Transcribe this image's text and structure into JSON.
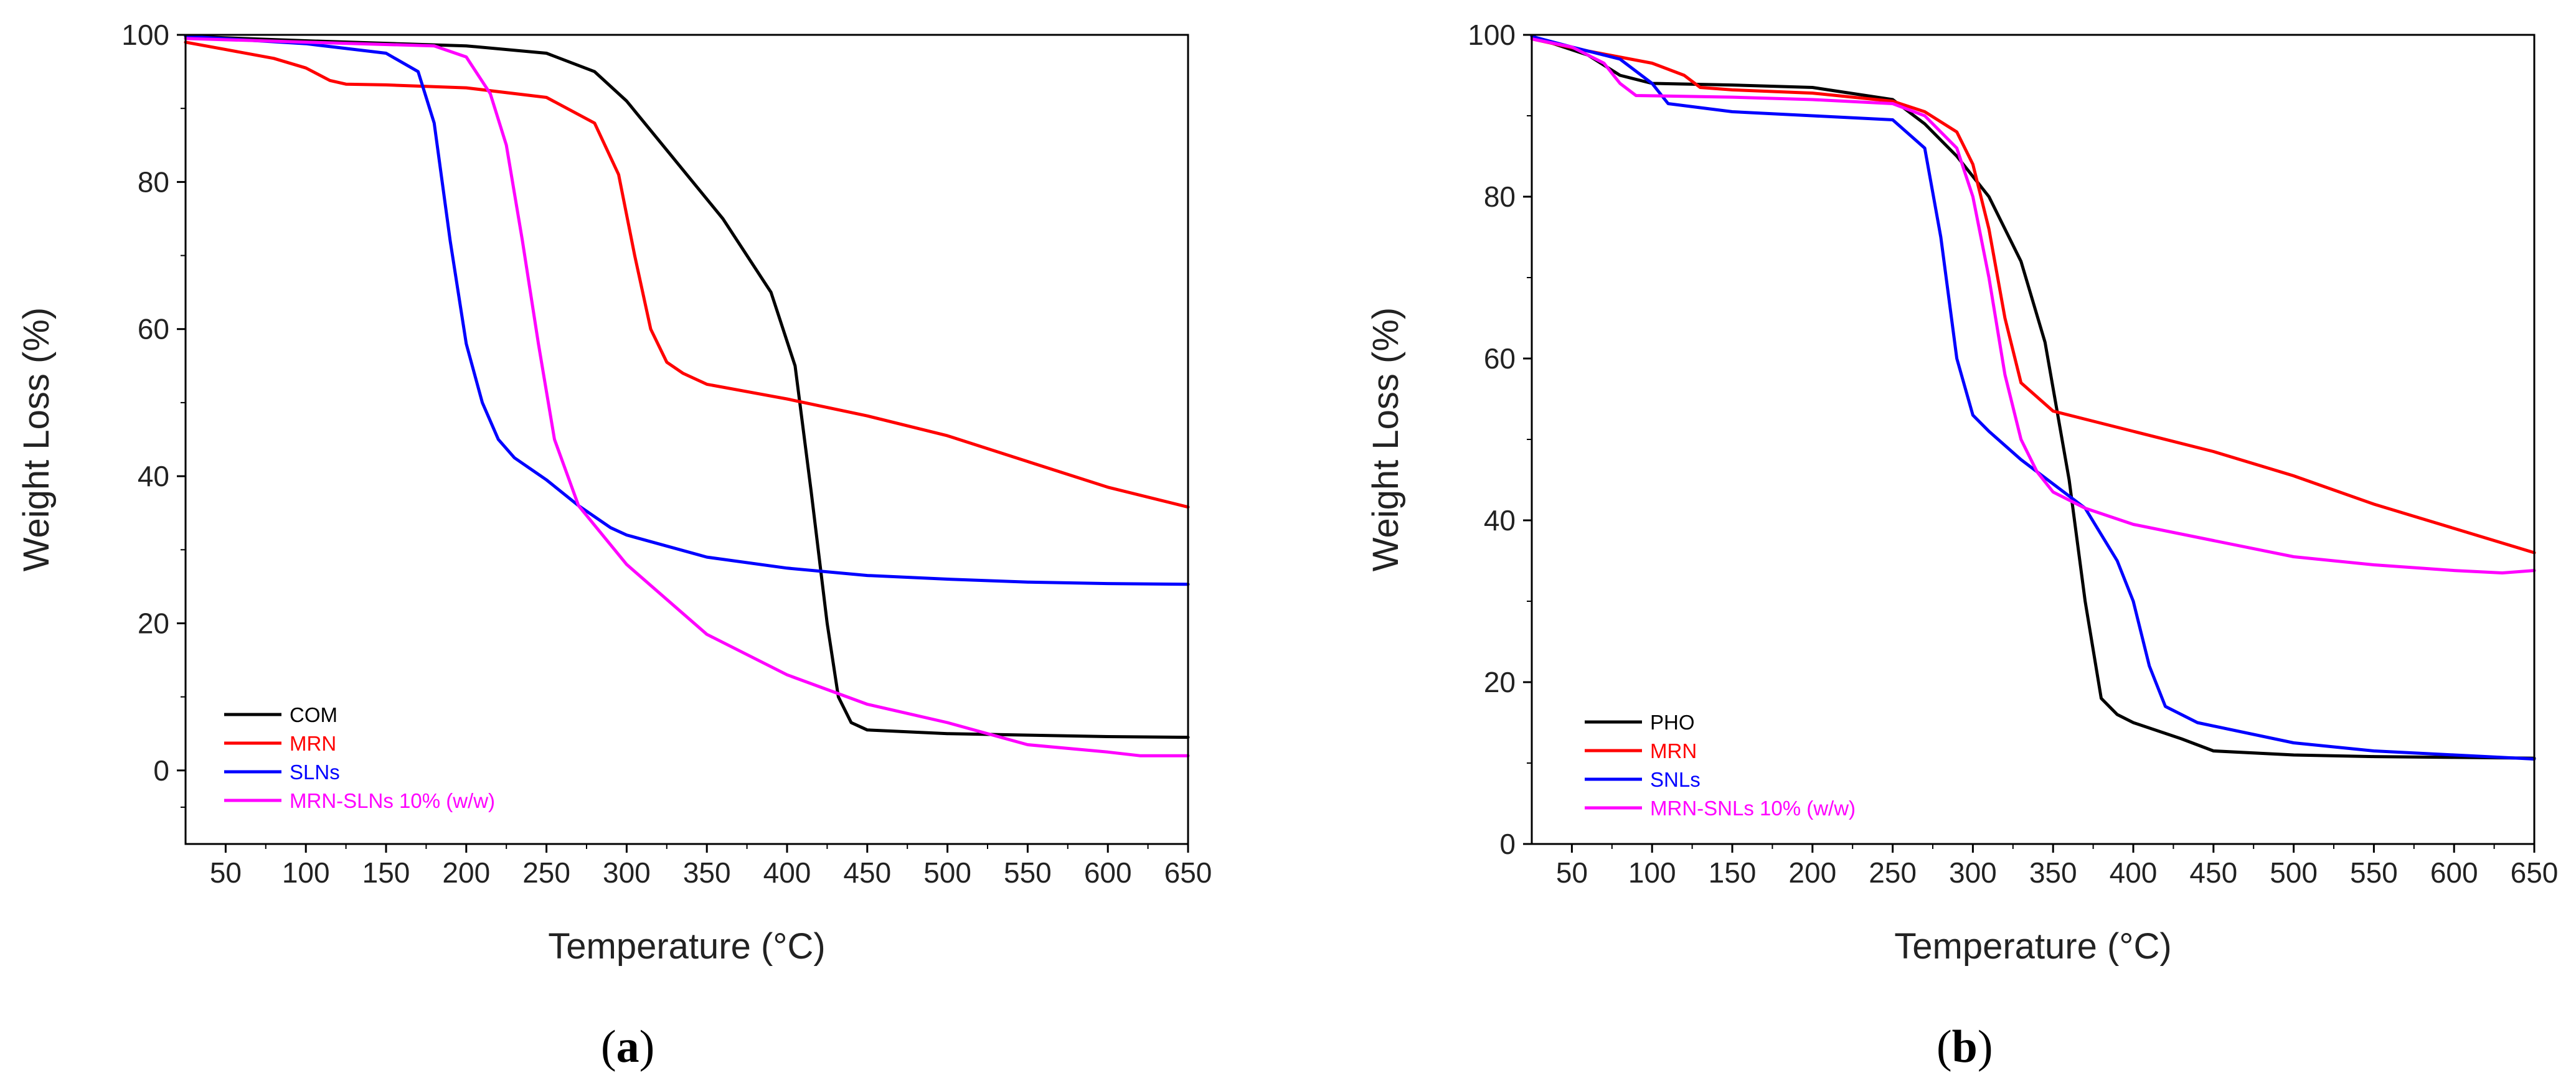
{
  "chart_data": [
    {
      "type": "line",
      "panel": "a",
      "caption_prefix": "(",
      "caption": "a",
      "caption_suffix": ")",
      "xlabel": "Temperature (°C)",
      "ylabel": "Weight Loss (%)",
      "xlim": [
        25,
        650
      ],
      "ylim": [
        -10,
        100
      ],
      "xticks": [
        50,
        100,
        150,
        200,
        250,
        300,
        350,
        400,
        450,
        500,
        550,
        600,
        650
      ],
      "yticks": [
        0,
        20,
        40,
        60,
        80,
        100
      ],
      "legend_position": "bottom-left",
      "series": [
        {
          "name": "COM",
          "color": "#000000",
          "x": [
            25,
            100,
            200,
            250,
            280,
            300,
            330,
            360,
            390,
            405,
            415,
            425,
            432,
            440,
            450,
            500,
            550,
            600,
            650
          ],
          "y": [
            99.8,
            99.2,
            98.5,
            97.5,
            95,
            91,
            83,
            75,
            65,
            55,
            38,
            20,
            10,
            6.5,
            5.5,
            5,
            4.8,
            4.6,
            4.5
          ]
        },
        {
          "name": "MRN",
          "color": "#ff0000",
          "x": [
            25,
            50,
            80,
            100,
            115,
            125,
            150,
            200,
            250,
            280,
            295,
            305,
            315,
            325,
            335,
            350,
            400,
            450,
            500,
            550,
            600,
            650
          ],
          "y": [
            99,
            98,
            96.8,
            95.5,
            93.8,
            93.3,
            93.2,
            92.8,
            91.5,
            88,
            81,
            70,
            60,
            55.5,
            54,
            52.5,
            50.5,
            48.2,
            45.5,
            42,
            38.5,
            35.8
          ]
        },
        {
          "name": "SLNs",
          "color": "#0000ff",
          "x": [
            25,
            100,
            150,
            170,
            180,
            190,
            200,
            210,
            220,
            230,
            250,
            270,
            290,
            300,
            350,
            400,
            450,
            500,
            550,
            600,
            650
          ],
          "y": [
            99.8,
            98.8,
            97.5,
            95,
            88,
            72,
            58,
            50,
            45,
            42.5,
            39.5,
            36,
            33,
            32,
            29,
            27.5,
            26.5,
            26,
            25.6,
            25.4,
            25.3
          ]
        },
        {
          "name": "MRN-SLNs 10% (w/w)",
          "color": "#ff00ff",
          "x": [
            25,
            100,
            180,
            200,
            215,
            225,
            235,
            245,
            255,
            270,
            300,
            350,
            400,
            450,
            500,
            550,
            600,
            620,
            650
          ],
          "y": [
            99.5,
            99,
            98.5,
            97,
            92,
            85,
            72,
            58,
            45,
            36,
            28,
            18.5,
            13,
            9,
            6.5,
            3.5,
            2.5,
            2,
            2
          ]
        }
      ]
    },
    {
      "type": "line",
      "panel": "b",
      "caption_prefix": "(",
      "caption": "b",
      "caption_suffix": ")",
      "xlabel": "Temperature (°C)",
      "ylabel": "Weight Loss (%)",
      "xlim": [
        25,
        650
      ],
      "ylim": [
        0,
        100
      ],
      "xticks": [
        50,
        100,
        150,
        200,
        250,
        300,
        350,
        400,
        450,
        500,
        550,
        600,
        650
      ],
      "yticks": [
        0,
        20,
        40,
        60,
        80,
        100
      ],
      "legend_position": "bottom-left",
      "series": [
        {
          "name": "PHO",
          "color": "#000000",
          "x": [
            25,
            60,
            80,
            100,
            150,
            200,
            250,
            270,
            290,
            310,
            330,
            345,
            360,
            370,
            380,
            390,
            400,
            430,
            450,
            500,
            550,
            600,
            650
          ],
          "y": [
            99.8,
            97.5,
            95,
            94,
            93.8,
            93.5,
            92,
            89,
            85,
            80,
            72,
            62,
            45,
            30,
            18,
            16,
            15,
            13,
            11.5,
            11,
            10.8,
            10.7,
            10.6
          ]
        },
        {
          "name": "MRN",
          "color": "#ff0000",
          "x": [
            25,
            60,
            100,
            120,
            130,
            150,
            200,
            250,
            270,
            290,
            300,
            310,
            320,
            330,
            350,
            400,
            450,
            500,
            550,
            600,
            650
          ],
          "y": [
            99.5,
            98,
            96.5,
            95,
            93.5,
            93.2,
            92.8,
            91.8,
            90.5,
            88,
            84,
            76,
            65,
            57,
            53.5,
            51,
            48.5,
            45.5,
            42,
            39,
            36
          ]
        },
        {
          "name": "SNLs",
          "color": "#0000ff",
          "x": [
            25,
            50,
            80,
            100,
            110,
            150,
            200,
            250,
            270,
            280,
            290,
            300,
            310,
            330,
            350,
            370,
            390,
            400,
            410,
            420,
            440,
            500,
            550,
            600,
            650
          ],
          "y": [
            99.8,
            98.5,
            97,
            94,
            91.5,
            90.5,
            90,
            89.5,
            86,
            75,
            60,
            53,
            51,
            47.5,
            44.5,
            41.5,
            35,
            30,
            22,
            17,
            15,
            12.5,
            11.5,
            11,
            10.5
          ]
        },
        {
          "name": "MRN-SNLs 10% (w/w)",
          "color": "#ff00ff",
          "x": [
            25,
            50,
            70,
            80,
            90,
            150,
            200,
            250,
            270,
            290,
            300,
            310,
            320,
            330,
            340,
            350,
            370,
            400,
            450,
            500,
            550,
            600,
            630,
            650
          ],
          "y": [
            99.5,
            98.5,
            96.5,
            94,
            92.5,
            92.3,
            92,
            91.5,
            90,
            86,
            80,
            70,
            58,
            50,
            46,
            43.5,
            41.5,
            39.5,
            37.5,
            35.5,
            34.5,
            33.8,
            33.5,
            33.8
          ]
        }
      ]
    }
  ]
}
